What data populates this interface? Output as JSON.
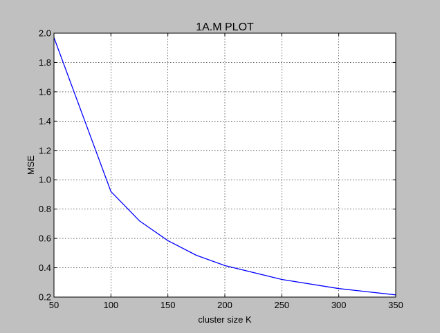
{
  "chart_data": {
    "type": "line",
    "title": "1A.M PLOT",
    "xlabel": "cluster size K",
    "ylabel": "MSE",
    "xlim": [
      50,
      350
    ],
    "ylim": [
      0.2,
      2.0
    ],
    "xticks": [
      50,
      100,
      150,
      200,
      250,
      300,
      350
    ],
    "xtick_labels": [
      "50",
      "100",
      "150",
      "200",
      "250",
      "300",
      "350"
    ],
    "yticks": [
      0.2,
      0.4,
      0.6,
      0.8,
      1.0,
      1.2,
      1.4,
      1.6,
      1.8,
      2.0
    ],
    "ytick_labels": [
      "0.2",
      "0.4",
      "0.6",
      "0.8",
      "1.0",
      "1.2",
      "1.4",
      "1.6",
      "1.8",
      "2.0"
    ],
    "grid": true,
    "series": [
      {
        "color": "#0000ff",
        "x": [
          50,
          100,
          125,
          150,
          175,
          200,
          250,
          300,
          350
        ],
        "y": [
          1.97,
          0.92,
          0.72,
          0.585,
          0.485,
          0.415,
          0.32,
          0.258,
          0.215
        ]
      }
    ]
  }
}
